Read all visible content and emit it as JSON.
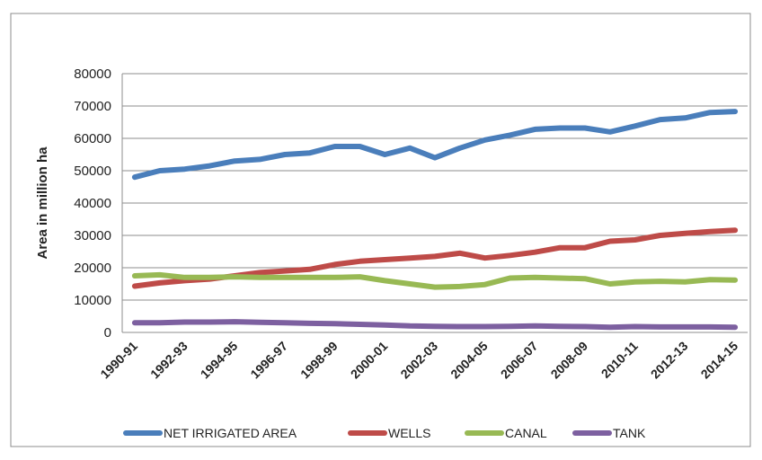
{
  "chart_data": {
    "type": "line",
    "title": "",
    "xlabel": "",
    "ylabel": "Area in million ha",
    "ylim": [
      0,
      80000
    ],
    "y_ticks": [
      "0",
      "10000",
      "20000",
      "30000",
      "40000",
      "50000",
      "60000",
      "70000",
      "80000"
    ],
    "grid": true,
    "legend_position": "bottom",
    "x": [
      "1990-91",
      "1991-92",
      "1992-93",
      "1993-94",
      "1994-95",
      "1995-96",
      "1996-97",
      "1997-98",
      "1998-99",
      "1999-00",
      "2000-01",
      "2001-02",
      "2002-03",
      "2003-04",
      "2004-05",
      "2005-06",
      "2006-07",
      "2007-08",
      "2008-09",
      "2009-10",
      "2010-11",
      "2011-12",
      "2012-13",
      "2013-14",
      "2014-15"
    ],
    "x_tick_labels": [
      "1990-91",
      "1992-93",
      "1994-95",
      "1996-97",
      "1998-99",
      "2000-01",
      "2002-03",
      "2004-05",
      "2006-07",
      "2008-09",
      "2010-11",
      "2012-13",
      "2014-15"
    ],
    "series": [
      {
        "name": "NET IRRIGATED AREA",
        "color": "#4a7ebb",
        "values": [
          48000,
          50000,
          50500,
          51500,
          53000,
          53500,
          55000,
          55500,
          57500,
          57500,
          55000,
          57000,
          54000,
          57000,
          59500,
          61000,
          62800,
          63200,
          63200,
          62000,
          63800,
          65800,
          66300,
          68000,
          68300
        ]
      },
      {
        "name": "WELLS",
        "color": "#be4b48",
        "values": [
          14300,
          15300,
          16000,
          16500,
          17500,
          18500,
          19000,
          19500,
          21000,
          22000,
          22500,
          23000,
          23500,
          24500,
          23000,
          23800,
          24800,
          26200,
          26200,
          28200,
          28600,
          30000,
          30600,
          31200,
          31600
        ]
      },
      {
        "name": "CANAL",
        "color": "#98b954",
        "values": [
          17500,
          17800,
          17000,
          17000,
          17200,
          17000,
          17000,
          17000,
          17000,
          17200,
          16000,
          15000,
          14000,
          14200,
          14800,
          16800,
          17000,
          16800,
          16600,
          15000,
          15600,
          15800,
          15600,
          16300,
          16200
        ]
      },
      {
        "name": "TANK",
        "color": "#7d60a0",
        "values": [
          3000,
          3000,
          3200,
          3200,
          3300,
          3100,
          3000,
          2800,
          2700,
          2500,
          2300,
          2000,
          1900,
          1800,
          1800,
          1900,
          2000,
          1900,
          1800,
          1600,
          1800,
          1700,
          1700,
          1700,
          1600
        ]
      }
    ]
  }
}
